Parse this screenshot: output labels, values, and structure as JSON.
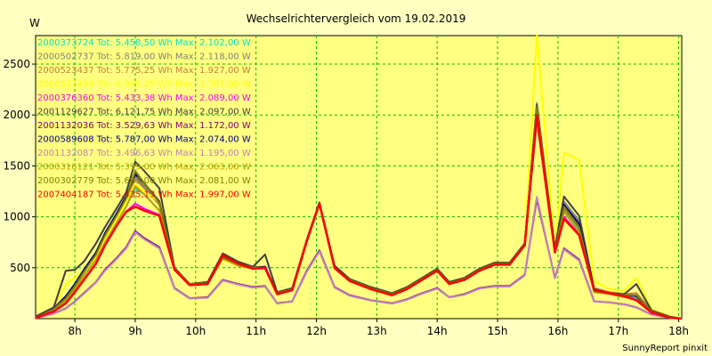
{
  "chart_data": {
    "type": "line",
    "title": "Wechselrichtervergleich vom 19.02.2019",
    "ylabel": "W",
    "xlabel": "",
    "footer": "SunnyReport pinxit",
    "x_ticks": [
      8,
      9,
      10,
      11,
      12,
      13,
      14,
      15,
      16,
      17,
      18
    ],
    "x_tick_labels": [
      "8h",
      "9h",
      "10h",
      "11h",
      "12h",
      "13h",
      "14h",
      "15h",
      "16h",
      "17h",
      "18h"
    ],
    "y_ticks": [
      500,
      1000,
      1500,
      2000,
      2500
    ],
    "y_tick_labels": [
      "500",
      "1000",
      "1500",
      "2000",
      "2500"
    ],
    "xlim": [
      7.35,
      18.05
    ],
    "ylim": [
      0,
      2780
    ],
    "grid": true,
    "legend_position": "top-left",
    "x": [
      7.35,
      7.65,
      7.85,
      8.0,
      8.15,
      8.35,
      8.5,
      8.7,
      8.85,
      9.0,
      9.15,
      9.4,
      9.65,
      9.9,
      10.2,
      10.45,
      10.7,
      10.95,
      11.15,
      11.35,
      11.6,
      11.85,
      12.05,
      12.3,
      12.55,
      12.9,
      13.25,
      13.5,
      13.75,
      14.0,
      14.2,
      14.45,
      14.7,
      14.95,
      15.2,
      15.45,
      15.65,
      15.95,
      16.1,
      16.35,
      16.6,
      16.85,
      17.1,
      17.3,
      17.55,
      17.85,
      18.05
    ],
    "series": [
      {
        "name": "2000373724 Tot: 5.458,50 Wh Max: 2.102,00 W",
        "color": "#00e0e0",
        "values": [
          10,
          80,
          180,
          290,
          420,
          580,
          750,
          950,
          1100,
          1280,
          1220,
          1060,
          480,
          330,
          340,
          590,
          520,
          490,
          490,
          240,
          280,
          780,
          1130,
          490,
          370,
          290,
          230,
          290,
          380,
          470,
          340,
          380,
          470,
          530,
          530,
          720,
          2100,
          650,
          1070,
          860,
          260,
          240,
          210,
          200,
          60,
          10,
          0
        ]
      },
      {
        "name": "2000502737 Tot: 5.819,00 Wh Max: 2.118,00 W",
        "color": "#808080",
        "values": [
          15,
          100,
          200,
          320,
          460,
          630,
          810,
          1020,
          1180,
          1400,
          1300,
          1130,
          490,
          340,
          350,
          610,
          540,
          500,
          510,
          250,
          290,
          790,
          1140,
          510,
          380,
          300,
          240,
          300,
          390,
          480,
          350,
          390,
          480,
          540,
          540,
          730,
          2118,
          660,
          1150,
          960,
          280,
          250,
          230,
          220,
          70,
          15,
          0
        ]
      },
      {
        "name": "2000523437 Tot: 5.775,25 Wh Max: 1.927,00 W",
        "color": "#c08040",
        "values": [
          12,
          95,
          210,
          330,
          470,
          640,
          830,
          1030,
          1190,
          1370,
          1280,
          1120,
          480,
          330,
          340,
          600,
          530,
          490,
          500,
          240,
          280,
          770,
          1120,
          500,
          370,
          290,
          230,
          290,
          380,
          470,
          340,
          380,
          470,
          530,
          530,
          720,
          1927,
          650,
          1080,
          890,
          300,
          260,
          240,
          250,
          80,
          15,
          0
        ]
      },
      {
        "name": "2000523439 Tot: 6.345,25 Wh Max: 2.787,00 W",
        "color": "#ffff00",
        "values": [
          10,
          110,
          340,
          400,
          470,
          600,
          780,
          980,
          1150,
          1320,
          1250,
          1150,
          500,
          340,
          350,
          580,
          520,
          490,
          490,
          240,
          280,
          770,
          1110,
          500,
          370,
          290,
          230,
          290,
          380,
          470,
          340,
          380,
          470,
          530,
          530,
          720,
          2787,
          690,
          1630,
          1560,
          370,
          290,
          270,
          400,
          90,
          20,
          0
        ]
      },
      {
        "name": "2000376360 Tot: 5.433,38 Wh Max: 2.089,00 W",
        "color": "#ff00ff",
        "values": [
          8,
          70,
          150,
          260,
          380,
          540,
          720,
          920,
          1050,
          1130,
          1080,
          1020,
          480,
          330,
          340,
          620,
          540,
          490,
          500,
          240,
          280,
          780,
          1130,
          500,
          370,
          290,
          230,
          290,
          380,
          470,
          340,
          380,
          470,
          530,
          530,
          720,
          2089,
          650,
          1000,
          830,
          280,
          250,
          220,
          190,
          60,
          10,
          0
        ]
      },
      {
        "name": "2001129627 Tot: 6.121,75 Wh Max: 2.097,00 W",
        "color": "#404040",
        "values": [
          20,
          110,
          470,
          480,
          560,
          740,
          900,
          1090,
          1240,
          1540,
          1450,
          1280,
          500,
          340,
          360,
          640,
          560,
          510,
          630,
          260,
          300,
          790,
          1140,
          520,
          390,
          310,
          250,
          310,
          400,
          490,
          360,
          400,
          490,
          550,
          550,
          740,
          2097,
          690,
          1200,
          1010,
          290,
          250,
          240,
          340,
          80,
          20,
          0
        ]
      },
      {
        "name": "2001132036 Tot: 3.529,63 Wh Max: 1.172,00 W",
        "color": "#800080",
        "values": [
          5,
          50,
          100,
          170,
          250,
          360,
          480,
          600,
          700,
          860,
          790,
          700,
          300,
          200,
          210,
          380,
          340,
          310,
          320,
          150,
          170,
          480,
          670,
          310,
          230,
          180,
          150,
          190,
          250,
          300,
          210,
          240,
          300,
          320,
          320,
          430,
          1172,
          400,
          690,
          580,
          170,
          160,
          140,
          110,
          40,
          8,
          0
        ]
      },
      {
        "name": "2000589608 Tot: 5.787,00 Wh Max: 2.074,00 W",
        "color": "#000080",
        "values": [
          15,
          100,
          220,
          340,
          480,
          650,
          840,
          1040,
          1200,
          1420,
          1330,
          1150,
          490,
          340,
          350,
          610,
          540,
          500,
          510,
          250,
          290,
          780,
          1130,
          500,
          380,
          300,
          240,
          300,
          390,
          480,
          350,
          390,
          480,
          540,
          540,
          730,
          2074,
          660,
          1120,
          930,
          280,
          250,
          230,
          220,
          70,
          15,
          0
        ]
      },
      {
        "name": "2001132087 Tot: 3.496,63 Wh Max: 1.195,00 W",
        "color": "#c080c0",
        "values": [
          5,
          48,
          98,
          165,
          245,
          355,
          470,
          590,
          690,
          850,
          780,
          690,
          295,
          198,
          205,
          375,
          335,
          305,
          315,
          148,
          168,
          470,
          660,
          305,
          225,
          178,
          148,
          185,
          245,
          295,
          208,
          235,
          295,
          315,
          315,
          425,
          1195,
          395,
          680,
          570,
          168,
          158,
          138,
          108,
          38,
          8,
          0
        ]
      },
      {
        "name": "2000316121 Tot: 5.399,00 Wh Max: 2.063,00 W",
        "color": "#c0a000",
        "values": [
          10,
          80,
          180,
          290,
          420,
          580,
          750,
          950,
          1100,
          1300,
          1220,
          1060,
          480,
          330,
          340,
          590,
          520,
          490,
          490,
          240,
          280,
          770,
          1120,
          490,
          370,
          290,
          230,
          290,
          380,
          470,
          340,
          380,
          470,
          530,
          530,
          720,
          2063,
          650,
          1050,
          850,
          260,
          240,
          210,
          190,
          60,
          10,
          0
        ]
      },
      {
        "name": "2000302779 Tot: 5.683,00 Wh Max: 2.081,00 W",
        "color": "#808000",
        "values": [
          12,
          95,
          200,
          320,
          460,
          630,
          820,
          1020,
          1180,
          1450,
          1330,
          1140,
          490,
          340,
          350,
          600,
          540,
          500,
          500,
          250,
          290,
          780,
          1130,
          500,
          380,
          300,
          240,
          300,
          390,
          480,
          350,
          390,
          480,
          540,
          540,
          730,
          2081,
          660,
          1100,
          900,
          270,
          250,
          230,
          230,
          70,
          15,
          0
        ]
      },
      {
        "name": "2007404187 Tot: 5.435,13 Wh Max: 1.997,00 W",
        "color": "#ff0000",
        "values": [
          8,
          70,
          150,
          260,
          380,
          540,
          720,
          920,
          1050,
          1100,
          1060,
          1010,
          480,
          330,
          340,
          620,
          540,
          490,
          500,
          240,
          280,
          780,
          1130,
          500,
          370,
          290,
          230,
          290,
          380,
          470,
          340,
          380,
          470,
          530,
          530,
          720,
          1997,
          650,
          980,
          820,
          280,
          250,
          220,
          180,
          60,
          10,
          0
        ]
      }
    ]
  }
}
